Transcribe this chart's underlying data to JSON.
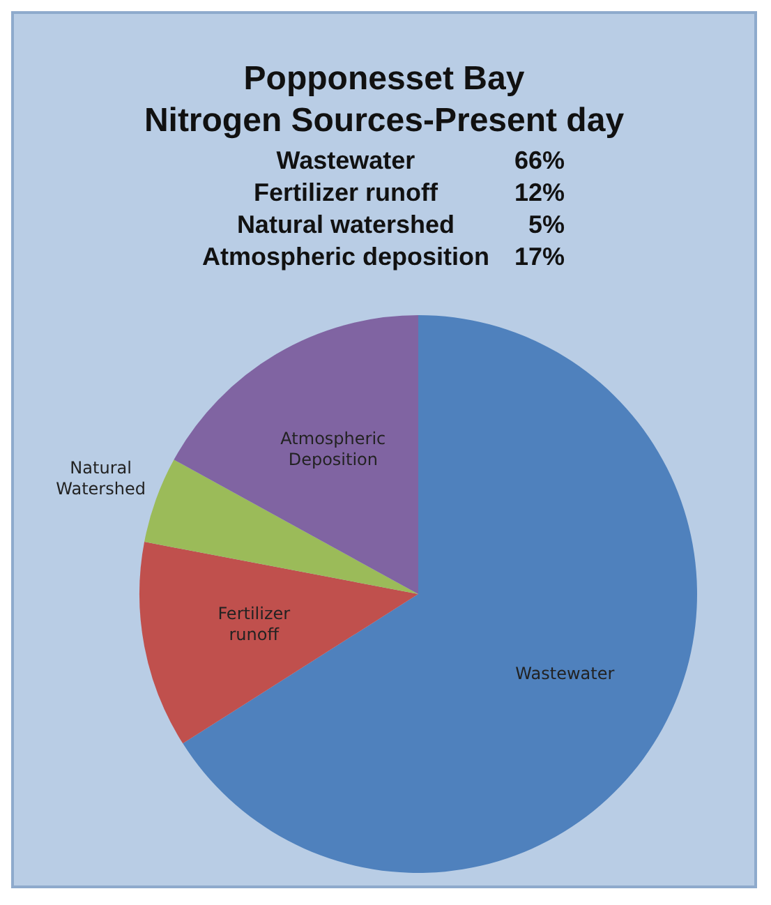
{
  "chart_data": {
    "type": "pie",
    "title": "Popponesset Bay\nNitrogen Sources-Present day",
    "categories": [
      "Wastewater",
      "Fertilizer runoff",
      "Natural Watershed",
      "Atmospheric Deposition"
    ],
    "values": [
      66,
      12,
      5,
      17
    ],
    "annotations": [
      "Wastewater 66%",
      "Fertilizer runoff 12%",
      "Natural watershed 5%",
      "Atmospheric deposition 17%"
    ],
    "colors": [
      "#4f81bd",
      "#c0504d",
      "#9bbb59",
      "#8064a2"
    ],
    "legend": false
  }
}
